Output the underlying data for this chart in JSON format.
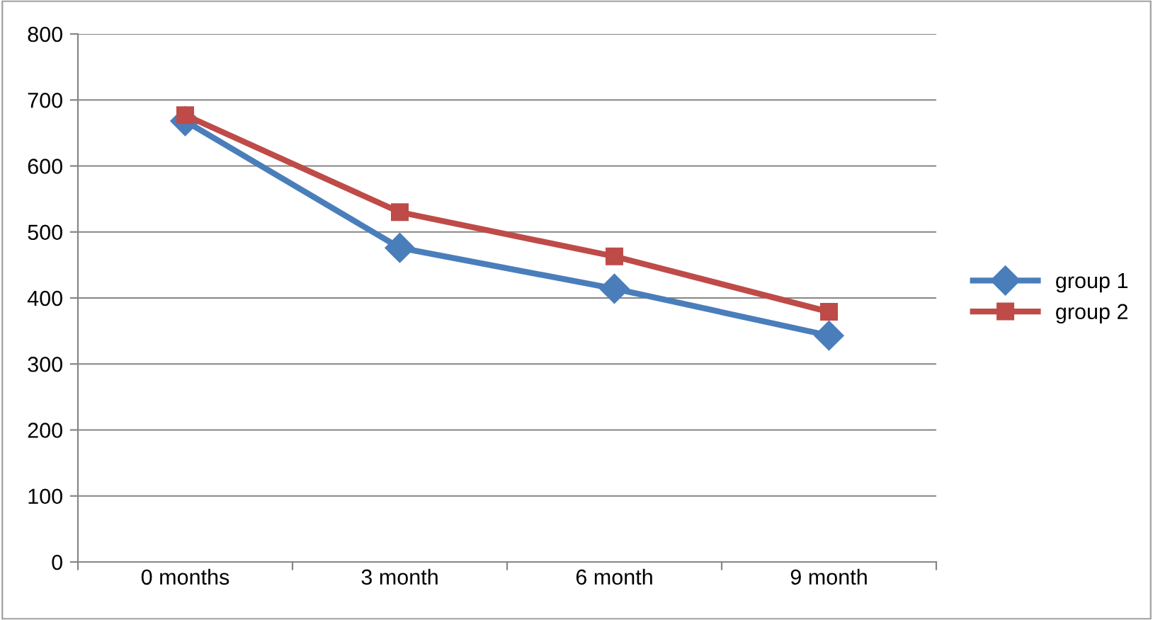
{
  "chart_data": {
    "type": "line",
    "categories": [
      "0 months",
      "3 month",
      "6 month",
      "9 month"
    ],
    "series": [
      {
        "name": "group 1",
        "color": "#4a7ebb",
        "values": [
          668,
          476,
          414,
          343
        ],
        "marker": "diamond"
      },
      {
        "name": "group 2",
        "color": "#be4b48",
        "values": [
          677,
          530,
          463,
          379
        ],
        "marker": "square"
      }
    ],
    "ylim": [
      0,
      800
    ],
    "yticks": [
      0,
      100,
      200,
      300,
      400,
      500,
      600,
      700,
      800
    ],
    "grid": "y",
    "legend": "right",
    "line_style": "solid"
  }
}
